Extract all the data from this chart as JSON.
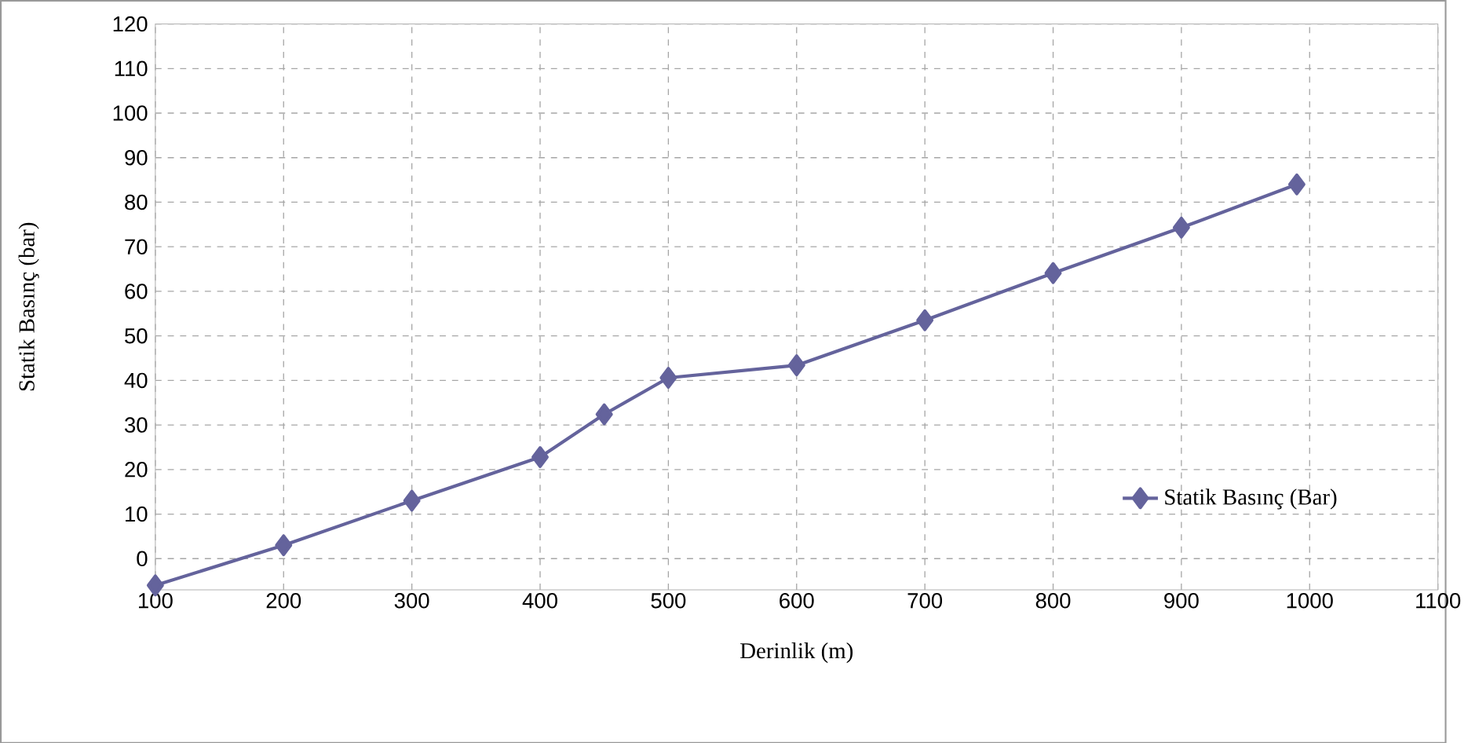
{
  "chart_data": {
    "type": "line",
    "xlabel": "Derinlik (m)",
    "ylabel": "Statik Basınç (bar)",
    "x": [
      100,
      200,
      300,
      400,
      450,
      500,
      600,
      700,
      800,
      900,
      990
    ],
    "series": [
      {
        "name": "Statik Basınç (Bar)",
        "color": "#64639c",
        "values": [
          -6,
          3,
          13,
          22.8,
          32.4,
          40.6,
          43.4,
          53.5,
          64.1,
          74.3,
          84
        ]
      }
    ],
    "xlim": [
      100,
      1100
    ],
    "xticks": [
      100,
      200,
      300,
      400,
      500,
      600,
      700,
      800,
      900,
      1000,
      1100
    ],
    "ylim": [
      -7,
      120
    ],
    "yticks": [
      0,
      10,
      20,
      30,
      40,
      50,
      60,
      70,
      80,
      90,
      100,
      110,
      120
    ],
    "grid": true,
    "legend": "bottom right",
    "marker": "diamond",
    "line_style": "solid"
  }
}
